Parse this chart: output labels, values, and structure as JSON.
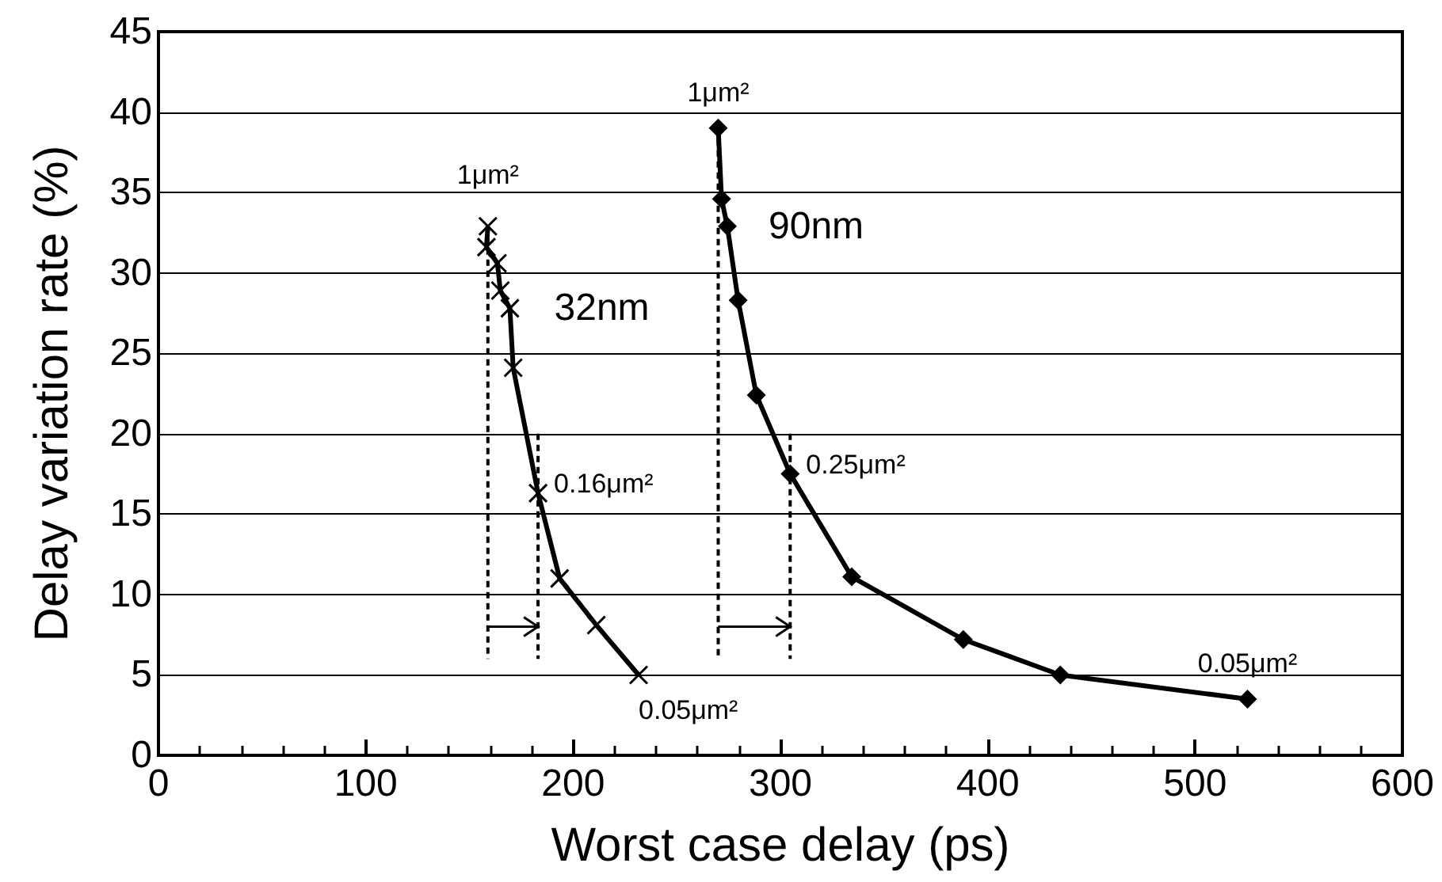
{
  "chart_data": {
    "type": "line",
    "xlabel": "Worst case delay (ps)",
    "ylabel": "Delay variation rate (%)",
    "xlim": [
      0,
      600
    ],
    "xticks": [
      0,
      100,
      200,
      300,
      400,
      500,
      600
    ],
    "ylim": [
      0,
      45
    ],
    "yticks": [
      0,
      5,
      10,
      15,
      20,
      25,
      30,
      35,
      40,
      45
    ],
    "grid": "y",
    "line_style": "solid",
    "series": [
      {
        "name": "32nm",
        "color": "#000000",
        "marker": "cross",
        "x": [
          158.9,
          158.2,
          163.5,
          164.9,
          169.5,
          171.1,
          183.1,
          193.5,
          211.2,
          231.6
        ],
        "values": [
          32.9,
          31.6,
          30.6,
          28.9,
          27.8,
          24.1,
          16.3,
          11.0,
          8.1,
          5.0
        ]
      },
      {
        "name": "90nm",
        "color": "#000000",
        "marker": "diamond",
        "x": [
          270,
          271.6,
          274.4,
          279.6,
          288.4,
          304.7,
          334.4,
          388.2,
          435.0,
          525.3
        ],
        "values": [
          39.0,
          34.6,
          32.9,
          28.3,
          22.4,
          17.5,
          11.1,
          7.2,
          5.0,
          3.5
        ]
      }
    ],
    "annotations": [
      {
        "text": "1μm²",
        "x": 158.9,
        "y": 32.9
      },
      {
        "text": "0.16μm²",
        "x": 183.1,
        "y": 16.3
      },
      {
        "text": "0.05μm²",
        "x": 231.6,
        "y": 5.0
      },
      {
        "text": "1μm²",
        "x": 270,
        "y": 39.0
      },
      {
        "text": "0.25μm²",
        "x": 304.7,
        "y": 17.5
      },
      {
        "text": "0.05μm²",
        "x": 525.3,
        "y": 3.5
      }
    ]
  }
}
